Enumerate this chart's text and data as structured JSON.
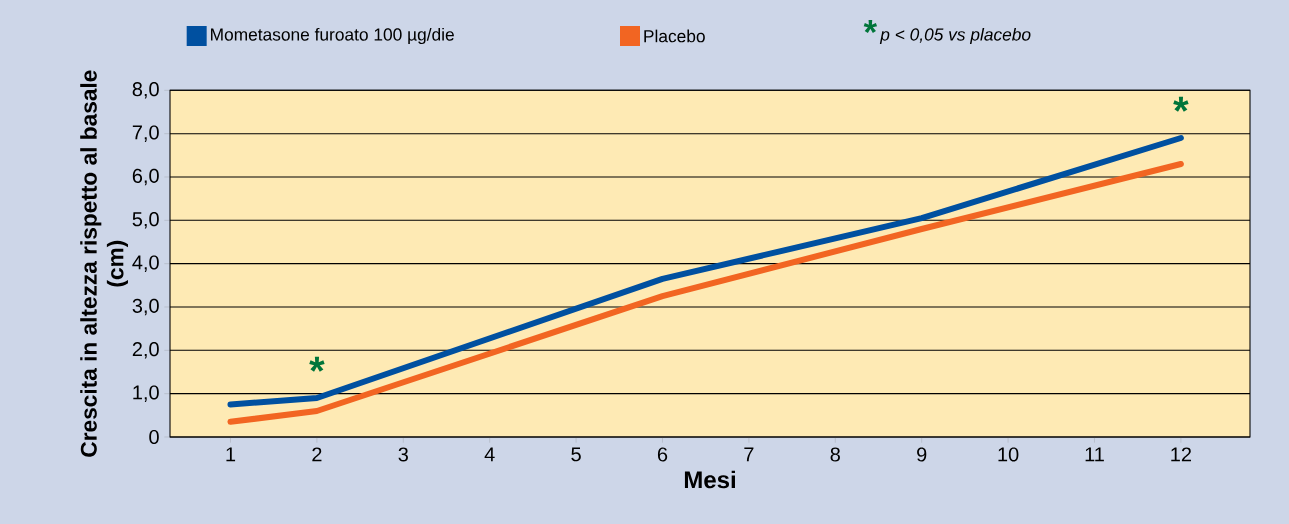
{
  "chart_data": {
    "type": "line",
    "xlabel": "Mesi",
    "ylabel": "Crescita in altezza rispetto al basale (cm)",
    "x": [
      1,
      2,
      6,
      9,
      12
    ],
    "series": [
      {
        "name": "Mometasone furoato 100 µg/die",
        "color": "#0050a0",
        "values": [
          0.75,
          0.9,
          3.65,
          5.05,
          6.9
        ]
      },
      {
        "name": "Placebo",
        "color": "#f26522",
        "values": [
          0.35,
          0.6,
          3.25,
          4.8,
          6.3
        ]
      }
    ],
    "xlim": [
      0.3,
      12.8
    ],
    "xticks": [
      1,
      2,
      3,
      4,
      5,
      6,
      7,
      8,
      9,
      10,
      11,
      12
    ],
    "ylim": [
      0,
      8
    ],
    "yticks": [
      0,
      {
        "value": 1,
        "label": "1,0"
      },
      {
        "value": 2,
        "label": "2,0"
      },
      {
        "value": 3,
        "label": "3,0"
      },
      {
        "value": 4,
        "label": "4,0"
      },
      {
        "value": 5,
        "label": "5,0"
      },
      {
        "value": 6,
        "label": "6,0"
      },
      {
        "value": 7,
        "label": "7,0"
      },
      {
        "value": 8,
        "label": "8,0"
      }
    ],
    "grid": "y",
    "legend": "top",
    "marker": "none",
    "line_style": "solid",
    "annotations": [
      {
        "text": "*",
        "x": 2,
        "y": 0.9
      },
      {
        "text": "*",
        "x": 12,
        "y": 6.9
      },
      "p < 0,05 vs placebo"
    ]
  }
}
